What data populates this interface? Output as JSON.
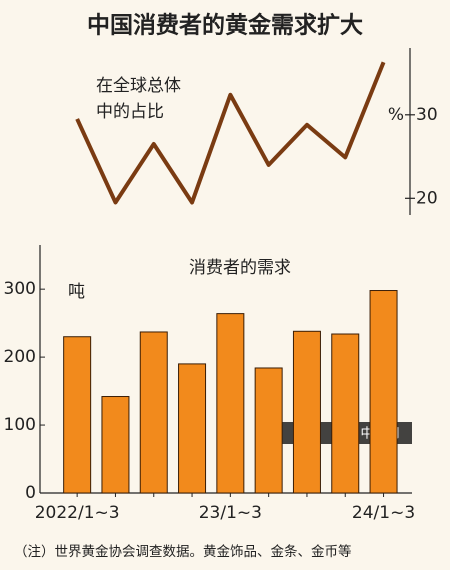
{
  "title": "中国消费者的黄金需求扩大",
  "footnote": "（注）世界黄金协会调查数据。黄金饰品、金条、金币等",
  "watermark": "中文网",
  "chart_data": [
    {
      "type": "line",
      "annotation": [
        "在全球总体",
        "中的占比"
      ],
      "y_axis_label": "%",
      "color": "#7a3b12",
      "values": [
        29.5,
        19.5,
        26.5,
        19.5,
        32.4,
        24,
        28.8,
        24.9,
        36.3
      ],
      "ylim": [
        18,
        38
      ],
      "yticks": [
        20,
        30
      ],
      "axis_side": "right"
    },
    {
      "type": "bar",
      "subtitle": "消费者的需求",
      "y_axis_label": "吨",
      "color": "#f28a1c",
      "categories": [
        "2022/1~3",
        null,
        null,
        null,
        "23/1~3",
        null,
        null,
        null,
        "24/1~3"
      ],
      "values": [
        230,
        142,
        237,
        190,
        264,
        184,
        238,
        234,
        298
      ],
      "ylim": [
        0,
        365
      ],
      "yticks": [
        0,
        100,
        200,
        300
      ],
      "axis_side": "left"
    }
  ]
}
